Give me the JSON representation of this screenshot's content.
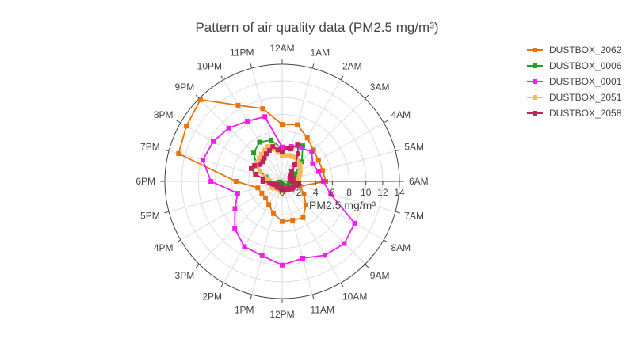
{
  "chart_data": {
    "type": "polar-line",
    "title": "Pattern of air quality data (PM2.5 mg/m³)",
    "radial_axis": {
      "title": "PM2.5 mg/m³",
      "range": [
        0,
        14
      ],
      "tick_values": [
        0,
        2,
        4,
        6,
        8,
        10,
        12,
        14
      ],
      "tick_labels": [
        "0",
        "2",
        "4",
        "6",
        "8",
        "10",
        "12",
        "14"
      ],
      "angle": "6AM direction (east)"
    },
    "angular_axis": {
      "direction": "clockwise",
      "rotation": "12AM at top",
      "tick_labels": [
        "12AM",
        "1AM",
        "2AM",
        "3AM",
        "4AM",
        "5AM",
        "6AM",
        "7AM",
        "8AM",
        "9AM",
        "10AM",
        "11AM",
        "12PM",
        "1PM",
        "2PM",
        "3PM",
        "4PM",
        "5PM",
        "6PM",
        "7PM",
        "8PM",
        "9PM",
        "10PM",
        "11PM"
      ]
    },
    "grid": true,
    "legend_position": "right",
    "series": [
      {
        "name": "DUSTBOX_2062",
        "color": "#e8740f",
        "step_hours": 1,
        "values": [
          6.8,
          7.0,
          6.0,
          5.3,
          5.0,
          5.0,
          5.2,
          2.2,
          3.0,
          4.0,
          5.0,
          4.8,
          4.8,
          4.0,
          3.2,
          2.8,
          2.8,
          3.0,
          5.5,
          12.8,
          13.2,
          13.8,
          10.5,
          9.0
        ]
      },
      {
        "name": "DUSTBOX_0006",
        "color": "#22a022",
        "step_hours": 1,
        "values": [
          3.9,
          4.2,
          4.9,
          3.3,
          1.8,
          1.8,
          1.3,
          0.9,
          1.0,
          0.7,
          0.6,
          0.5,
          0.4,
          0.4,
          0.4,
          0.4,
          0.3,
          0.3,
          1.5,
          2.0,
          3.5,
          4.8,
          5.4,
          5.1
        ]
      },
      {
        "name": "DUSTBOX_0001",
        "color": "#f01ff0",
        "step_hours": 1,
        "values": [
          4.1,
          4.3,
          4.6,
          5.0,
          4.2,
          4.5,
          4.9,
          6.0,
          10.0,
          10.5,
          10.2,
          9.5,
          10.0,
          9.2,
          9.0,
          8.0,
          6.5,
          5.5,
          8.5,
          9.8,
          9.5,
          9.0,
          8.3,
          8.0
        ]
      },
      {
        "name": "DUSTBOX_2051",
        "color": "#f5b85a",
        "step_hours": 0.5,
        "values": [
          3.1,
          3.1,
          3.2,
          3.2,
          3.3,
          3.1,
          3.0,
          2.7,
          2.5,
          2.3,
          2.1,
          2.0,
          1.9,
          1.5,
          1.5,
          1.5,
          1.3,
          1.2,
          1.0,
          0.9,
          1.0,
          1.0,
          1.0,
          1.2,
          1.2,
          1.2,
          1.1,
          1.0,
          1.0,
          1.0,
          1.1,
          1.3,
          1.4,
          1.2,
          1.3,
          1.6,
          1.5,
          1.7,
          2.2,
          2.9,
          3.4,
          3.7,
          3.9,
          4.1,
          4.3,
          4.5,
          4.0,
          3.5
        ]
      },
      {
        "name": "DUSTBOX_2058",
        "color": "#c0245c",
        "step_hours": 0.5,
        "values": [
          3.5,
          4.0,
          4.0,
          4.8,
          3.8,
          2.5,
          1.6,
          1.4,
          1.2,
          1.0,
          1.3,
          1.3,
          1.2,
          2.0,
          1.8,
          1.5,
          1.5,
          1.5,
          1.0,
          1.2,
          1.1,
          1.0,
          1.1,
          1.0,
          0.8,
          0.9,
          0.8,
          0.7,
          0.8,
          0.9,
          0.8,
          0.7,
          0.8,
          1.0,
          1.2,
          1.5,
          2.3,
          2.3,
          3.3,
          4.0,
          3.8,
          3.3,
          3.3,
          3.5,
          3.8,
          4.0,
          4.3,
          3.8
        ]
      }
    ]
  }
}
